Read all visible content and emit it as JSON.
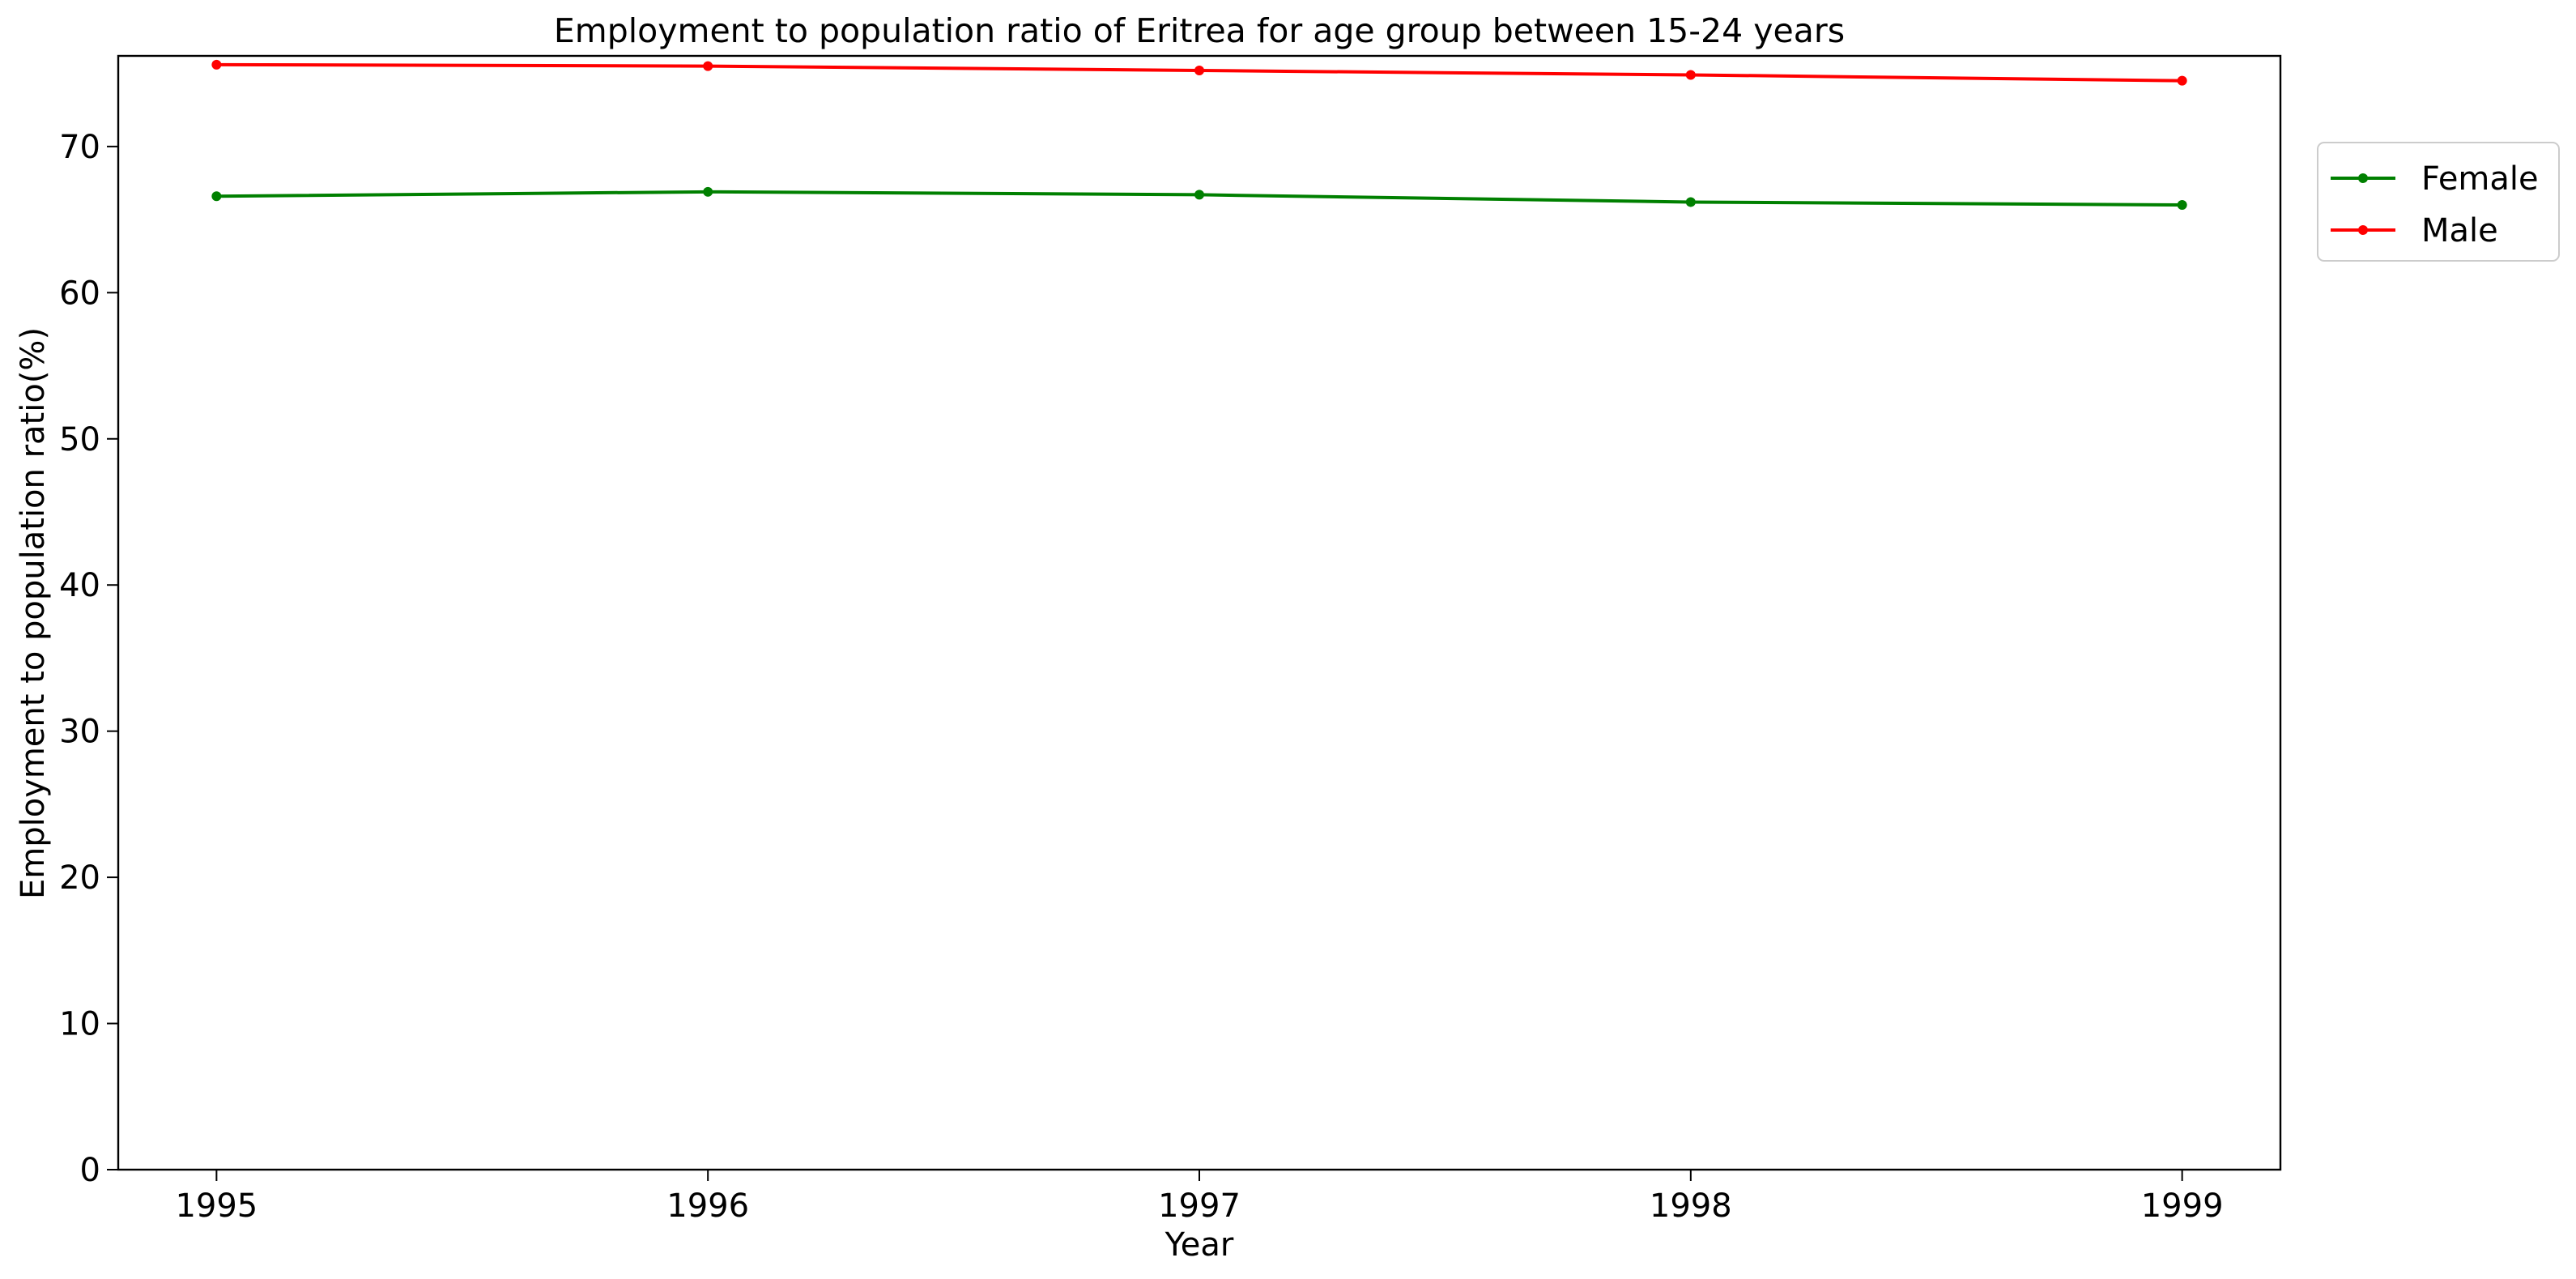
{
  "chart_data": {
    "type": "line",
    "title": "Employment to population ratio of Eritrea for age group between 15-24 years",
    "xlabel": "Year",
    "ylabel": "Employment to population ratio(%)",
    "x": [
      1995,
      1996,
      1997,
      1998,
      1999
    ],
    "x_ticks": [
      "1995",
      "1996",
      "1997",
      "1998",
      "1999"
    ],
    "xlim": [
      1994.8,
      1999.2
    ],
    "y_ticks": [
      "0",
      "10",
      "20",
      "30",
      "40",
      "50",
      "60",
      "70"
    ],
    "ylim": [
      0,
      76.2
    ],
    "grid": false,
    "legend_position": "outside-top-right",
    "series": [
      {
        "name": "Female",
        "color": "#008000",
        "values": [
          66.6,
          66.9,
          66.7,
          66.2,
          66.0
        ]
      },
      {
        "name": "Male",
        "color": "#ff0000",
        "values": [
          75.6,
          75.5,
          75.2,
          74.9,
          74.5
        ]
      }
    ]
  }
}
